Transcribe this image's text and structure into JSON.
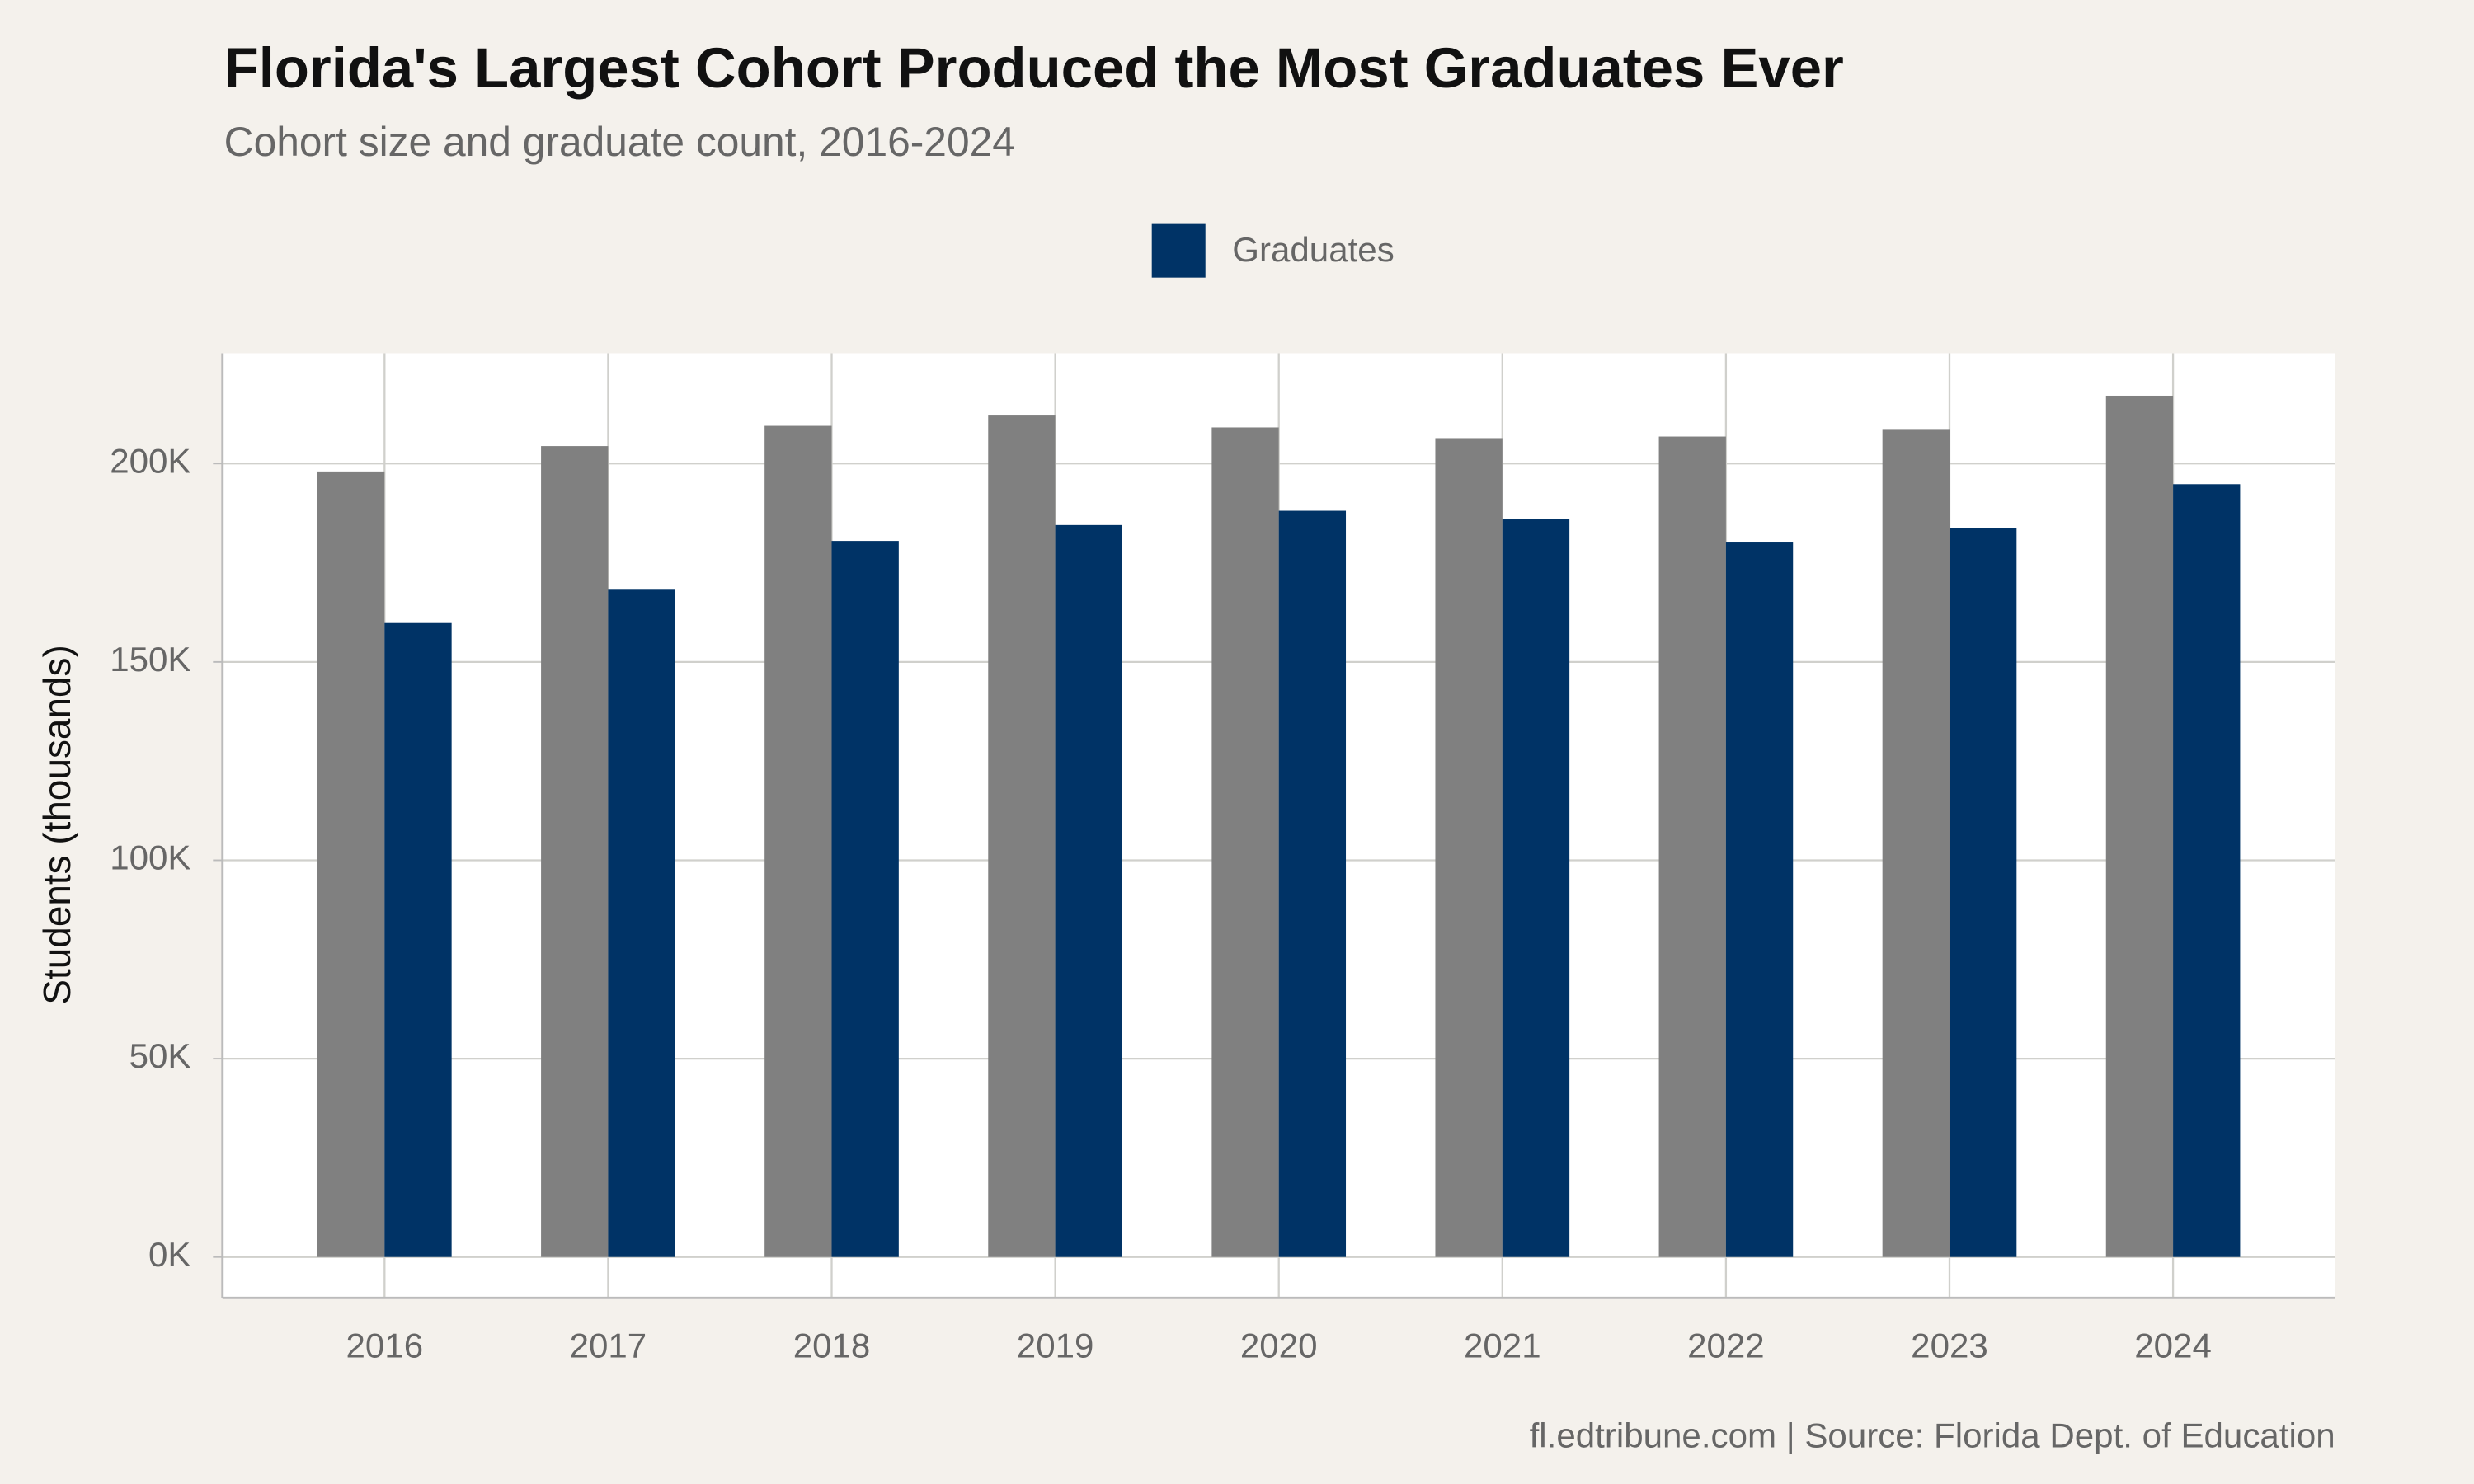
{
  "chart_data": {
    "type": "bar",
    "title": "Florida's Largest Cohort Produced the Most Graduates Ever",
    "subtitle": "Cohort size and graduate count, 2016-2024",
    "y_label": "Students (thousands)",
    "caption": "fl.edtribune.com | Source: Florida Dept. of Education",
    "categories": [
      "2016",
      "2017",
      "2018",
      "2019",
      "2020",
      "2021",
      "2022",
      "2023",
      "2024"
    ],
    "series": [
      {
        "color": "#808080",
        "values": [
          198000,
          204400,
          209500,
          212300,
          209100,
          206400,
          206800,
          208700,
          217100
        ]
      },
      {
        "name": "Graduates",
        "color": "#003366",
        "values": [
          159800,
          168200,
          180500,
          184500,
          188100,
          186100,
          180100,
          183700,
          194800
        ]
      }
    ],
    "ylim": [
      -10300,
      227800
    ],
    "yticks": [
      {
        "value": 0,
        "label": "0K"
      },
      {
        "value": 50000,
        "label": "50K"
      },
      {
        "value": 100000,
        "label": "100K"
      },
      {
        "value": 150000,
        "label": "150K"
      },
      {
        "value": 200000,
        "label": "200K"
      }
    ],
    "grid": true,
    "legend": "top"
  }
}
